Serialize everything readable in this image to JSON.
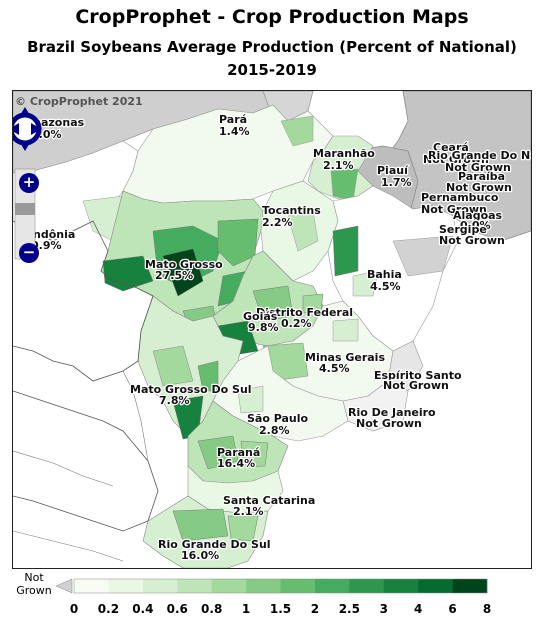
{
  "title": "CropProphet - Crop Production Maps",
  "subtitle": "Brazil Soybeans Average Production (Percent of National)",
  "period": "2015-2019",
  "copyright": "© CropProphet 2021",
  "map_controls": {
    "zoom_in": "+",
    "zoom_out": "−"
  },
  "legend": {
    "not_grown_label": "Not Grown",
    "ticks": [
      "0",
      "0.2",
      "0.4",
      "0.6",
      "0.8",
      "1",
      "1.5",
      "2",
      "2.5",
      "3",
      "4",
      "6",
      "8"
    ],
    "colors": [
      "#f7fcf5",
      "#e9f7e5",
      "#d6efd0",
      "#bee5b8",
      "#a3d99c",
      "#86cb85",
      "#66bd6f",
      "#45ab5e",
      "#2e974e",
      "#17813e",
      "#066b2f",
      "#00441b"
    ],
    "not_grown_color": "#d0d0d0"
  },
  "states": [
    {
      "name": "Amazonas",
      "value": "0.0%"
    },
    {
      "name": "Pará",
      "value": "1.4%"
    },
    {
      "name": "Maranhão",
      "value": "2.1%"
    },
    {
      "name": "Ceará",
      "value": "Not Grown"
    },
    {
      "name": "Rio Grande Do Norte",
      "value": "Not Grown"
    },
    {
      "name": "Paraíba",
      "value": "Not Grown"
    },
    {
      "name": "Piauí",
      "value": "1.7%"
    },
    {
      "name": "Pernambuco",
      "value": "Not Grown"
    },
    {
      "name": "Alagoas",
      "value": "0.0%"
    },
    {
      "name": "Sergipe",
      "value": "Not Grown"
    },
    {
      "name": "Tocantins",
      "value": "2.2%"
    },
    {
      "name": "Rondônia",
      "value": "0.9%"
    },
    {
      "name": "Mato Grosso",
      "value": "27.5%"
    },
    {
      "name": "Bahia",
      "value": "4.5%"
    },
    {
      "name": "Distrito Federal",
      "value": "0.2%"
    },
    {
      "name": "Goiás",
      "value": "9.8%"
    },
    {
      "name": "Minas Gerais",
      "value": "4.5%"
    },
    {
      "name": "Mato Grosso Do Sul",
      "value": "7.8%"
    },
    {
      "name": "Espírito Santo",
      "value": "Not Grown"
    },
    {
      "name": "São Paulo",
      "value": "2.8%"
    },
    {
      "name": "Rio De Janeiro",
      "value": "Not Grown"
    },
    {
      "name": "Paraná",
      "value": "16.4%"
    },
    {
      "name": "Santa Catarina",
      "value": "2.1%"
    },
    {
      "name": "Rio Grande Do Sul",
      "value": "16.0%"
    }
  ]
}
